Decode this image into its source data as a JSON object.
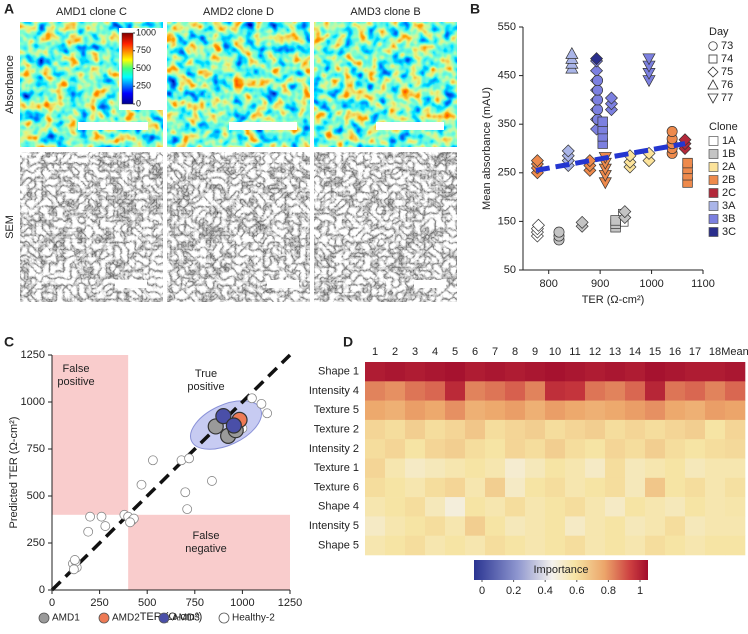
{
  "figure_a": {
    "panel_label": "A",
    "columns": [
      "AMD1 clone C",
      "AMD2 clone D",
      "AMD3 clone B"
    ],
    "rows": [
      "Absorbance",
      "SEM"
    ],
    "colorbar": {
      "lim": [
        0,
        1000
      ],
      "ticks": [
        0,
        250,
        500,
        750,
        1000
      ]
    }
  },
  "chart_data": [
    {
      "panel_label": "B",
      "type": "scatter",
      "x_label": "TER (Ω-cm²)",
      "y_label": "Mean absorbance (mAU)",
      "xlim": [
        750,
        1100
      ],
      "xticks": [
        800,
        900,
        1000,
        1100
      ],
      "ylim": [
        50,
        550
      ],
      "yticks": [
        50,
        150,
        250,
        350,
        450,
        550
      ],
      "day_title": "Day",
      "days": [
        73,
        74,
        75,
        76,
        77
      ],
      "clone_title": "Clone",
      "series": [
        {
          "name": "1A",
          "color": "#ffffff",
          "x": [
            778,
            778,
            778,
            780,
            945,
            945
          ],
          "y": [
            120,
            128,
            135,
            142,
            150,
            165
          ],
          "day": [
            75,
            75,
            75,
            75,
            74,
            74
          ]
        },
        {
          "name": "1B",
          "color": "#c4c4c4",
          "x": [
            820,
            820,
            820,
            865,
            865,
            930,
            930,
            930,
            948,
            948
          ],
          "y": [
            112,
            120,
            128,
            140,
            148,
            138,
            145,
            152,
            158,
            170
          ],
          "day": [
            73,
            73,
            73,
            75,
            75,
            74,
            74,
            74,
            75,
            75
          ]
        },
        {
          "name": "2A",
          "color": "#fce39a",
          "x": [
            958,
            958,
            958,
            995,
            995
          ],
          "y": [
            262,
            272,
            285,
            275,
            290
          ],
          "day": [
            75,
            75,
            75,
            75,
            75
          ]
        },
        {
          "name": "2B",
          "color": "#ee8a4c",
          "x": [
            778,
            778,
            778,
            778,
            880,
            880,
            880,
            910,
            910,
            910,
            910,
            910,
            1040,
            1040,
            1040,
            1040,
            1040,
            1070,
            1070,
            1070,
            1070
          ],
          "y": [
            250,
            260,
            268,
            275,
            255,
            265,
            275,
            230,
            245,
            258,
            270,
            282,
            290,
            300,
            310,
            320,
            335,
            230,
            245,
            258,
            270
          ],
          "day": [
            75,
            75,
            75,
            75,
            75,
            75,
            75,
            77,
            77,
            77,
            77,
            77,
            73,
            73,
            73,
            73,
            73,
            74,
            74,
            74,
            74
          ]
        },
        {
          "name": "2C",
          "color": "#b3283a",
          "x": [
            1065,
            1065,
            1065
          ],
          "y": [
            300,
            310,
            318
          ],
          "day": [
            75,
            75,
            75
          ]
        },
        {
          "name": "3A",
          "color": "#aab5e8",
          "x": [
            838,
            838,
            838,
            838,
            845,
            845,
            845,
            845
          ],
          "y": [
            265,
            275,
            285,
            295,
            465,
            475,
            485,
            495
          ],
          "day": [
            75,
            75,
            75,
            75,
            76,
            76,
            76,
            76
          ]
        },
        {
          "name": "3B",
          "color": "#7c80e0",
          "x": [
            893,
            893,
            893,
            893,
            893,
            893,
            893,
            893,
            895,
            895,
            895,
            895,
            895,
            905,
            905,
            905,
            905,
            922,
            922,
            922,
            995,
            995,
            995,
            995
          ],
          "y": [
            340,
            360,
            380,
            400,
            420,
            440,
            460,
            480,
            360,
            380,
            400,
            420,
            440,
            310,
            325,
            340,
            355,
            380,
            392,
            404,
            440,
            455,
            470,
            485
          ],
          "day": [
            75,
            75,
            75,
            75,
            75,
            75,
            75,
            75,
            73,
            73,
            73,
            73,
            73,
            74,
            74,
            74,
            74,
            75,
            75,
            75,
            77,
            77,
            77,
            77
          ]
        },
        {
          "name": "3C",
          "color": "#2a2e8c",
          "x": [
            893
          ],
          "y": [
            485
          ],
          "day": [
            75
          ]
        }
      ],
      "trend": {
        "x": [
          775,
          1065
        ],
        "y": [
          255,
          310
        ],
        "color": "#2436d0"
      }
    },
    {
      "panel_label": "C",
      "type": "scatter",
      "x_label": "TER (Ω-cm²)",
      "y_label": "Predicted TER (Ω-cm²)",
      "xlim": [
        0,
        1250
      ],
      "xticks": [
        0,
        250,
        500,
        750,
        1000,
        1250
      ],
      "ylim": [
        0,
        1250
      ],
      "yticks": [
        0,
        250,
        500,
        750,
        1000,
        1250
      ],
      "threshold": 400,
      "annotations": [
        "False positive",
        "True positive",
        "False negative"
      ],
      "series": [
        {
          "name": "AMD1",
          "color": "#9a9a9a",
          "x": [
            860,
            925,
            965
          ],
          "y": [
            870,
            820,
            850
          ]
        },
        {
          "name": "AMD2",
          "color": "#ee7a55",
          "x": [
            985
          ],
          "y": [
            905
          ]
        },
        {
          "name": "AMD3",
          "color": "#4a4fa8",
          "x": [
            900,
            955
          ],
          "y": [
            925,
            875
          ]
        },
        {
          "name": "Healthy-2",
          "color": "#ffffff",
          "x": [
            120,
            110,
            130,
            125,
            115,
            120,
            190,
            200,
            260,
            280,
            380,
            400,
            420,
            430,
            410,
            470,
            530,
            680,
            700,
            710,
            720,
            840,
            1000,
            1050,
            1100,
            1130
          ],
          "y": [
            130,
            140,
            120,
            150,
            110,
            160,
            310,
            390,
            390,
            340,
            400,
            390,
            370,
            380,
            360,
            560,
            690,
            690,
            520,
            430,
            700,
            580,
            860,
            1020,
            990,
            940
          ]
        }
      ]
    },
    {
      "panel_label": "D",
      "type": "heatmap",
      "columns": [
        "1",
        "2",
        "3",
        "4",
        "5",
        "6",
        "7",
        "8",
        "9",
        "10",
        "11",
        "12",
        "13",
        "14",
        "15",
        "16",
        "17",
        "18",
        "Mean"
      ],
      "rows": [
        "Shape 1",
        "Intensity 4",
        "Texture 5",
        "Texture 2",
        "Intensity 2",
        "Texture 1",
        "Texture 6",
        "Shape 4",
        "Intensity 5",
        "Shape 5"
      ],
      "values": [
        [
          0.97,
          0.98,
          0.97,
          0.98,
          0.99,
          0.97,
          0.98,
          0.97,
          0.98,
          0.99,
          0.98,
          0.97,
          0.98,
          0.97,
          0.99,
          0.98,
          0.97,
          0.97,
          0.98
        ],
        [
          0.8,
          0.78,
          0.82,
          0.84,
          0.94,
          0.8,
          0.82,
          0.85,
          0.8,
          0.93,
          0.92,
          0.82,
          0.8,
          0.84,
          0.95,
          0.82,
          0.84,
          0.8,
          0.84
        ],
        [
          0.74,
          0.72,
          0.76,
          0.74,
          0.78,
          0.72,
          0.74,
          0.76,
          0.72,
          0.76,
          0.74,
          0.72,
          0.74,
          0.76,
          0.78,
          0.74,
          0.72,
          0.76,
          0.75
        ],
        [
          0.62,
          0.6,
          0.64,
          0.6,
          0.62,
          0.66,
          0.6,
          0.62,
          0.64,
          0.6,
          0.62,
          0.64,
          0.6,
          0.62,
          0.6,
          0.62,
          0.64,
          0.58,
          0.62
        ],
        [
          0.6,
          0.62,
          0.58,
          0.62,
          0.64,
          0.6,
          0.58,
          0.62,
          0.6,
          0.64,
          0.6,
          0.58,
          0.62,
          0.6,
          0.64,
          0.6,
          0.58,
          0.6,
          0.61
        ],
        [
          0.62,
          0.56,
          0.52,
          0.54,
          0.56,
          0.58,
          0.56,
          0.5,
          0.54,
          0.58,
          0.56,
          0.52,
          0.6,
          0.54,
          0.56,
          0.58,
          0.54,
          0.56,
          0.56
        ],
        [
          0.6,
          0.58,
          0.56,
          0.6,
          0.62,
          0.56,
          0.64,
          0.52,
          0.58,
          0.6,
          0.56,
          0.58,
          0.6,
          0.54,
          0.66,
          0.58,
          0.6,
          0.56,
          0.59
        ],
        [
          0.56,
          0.58,
          0.6,
          0.54,
          0.48,
          0.58,
          0.56,
          0.6,
          0.56,
          0.58,
          0.6,
          0.56,
          0.52,
          0.58,
          0.56,
          0.54,
          0.58,
          0.56,
          0.57
        ],
        [
          0.52,
          0.56,
          0.58,
          0.6,
          0.56,
          0.64,
          0.58,
          0.54,
          0.56,
          0.58,
          0.52,
          0.56,
          0.58,
          0.54,
          0.56,
          0.6,
          0.54,
          0.56,
          0.56
        ],
        [
          0.56,
          0.58,
          0.6,
          0.56,
          0.58,
          0.56,
          0.6,
          0.58,
          0.56,
          0.58,
          0.6,
          0.56,
          0.58,
          0.56,
          0.6,
          0.58,
          0.56,
          0.58,
          0.58
        ]
      ],
      "colorbar": {
        "title": "Importance",
        "lim": [
          0,
          1
        ],
        "ticks": [
          0,
          0.2,
          0.4,
          0.6,
          0.8,
          1
        ]
      }
    }
  ]
}
